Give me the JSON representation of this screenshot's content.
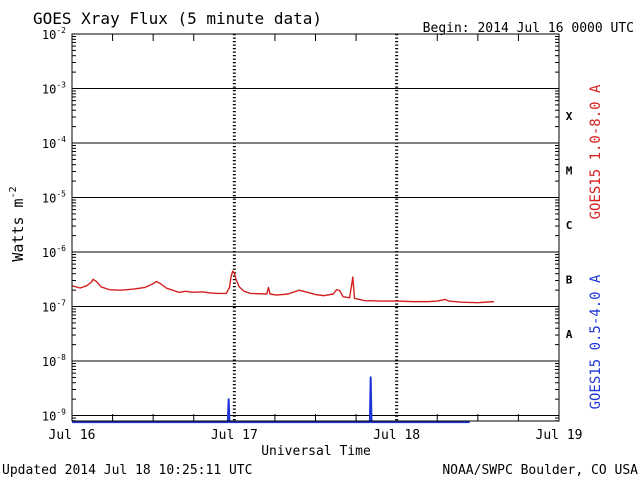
{
  "chart_data": {
    "type": "line",
    "title": "GOES Xray Flux (5 minute data)",
    "begin_label": "Begin:  2014 Jul 16 0000 UTC",
    "xlabel": "Universal Time",
    "ylabel": "Watts m",
    "ylabel_exponent": "-2",
    "updated": "Updated 2014 Jul 18 10:25:11 UTC",
    "source": "NOAA/SWPC Boulder, CO USA",
    "x_unit": "days since 2014 Jul 16 0000 UTC",
    "x_range": [
      0,
      3
    ],
    "x_ticks": [
      {
        "value": 0,
        "label": "Jul 16"
      },
      {
        "value": 1,
        "label": "Jul 17"
      },
      {
        "value": 2,
        "label": "Jul 18"
      },
      {
        "value": 3,
        "label": "Jul 19"
      }
    ],
    "y_scale": "log",
    "y_range_exp": [
      -9.1,
      -2
    ],
    "y_ticks": [
      {
        "exp": -2,
        "base": "10",
        "sup": "-2"
      },
      {
        "exp": -3,
        "base": "10",
        "sup": "-3"
      },
      {
        "exp": -4,
        "base": "10",
        "sup": "-4"
      },
      {
        "exp": -5,
        "base": "10",
        "sup": "-5"
      },
      {
        "exp": -6,
        "base": "10",
        "sup": "-6"
      },
      {
        "exp": -7,
        "base": "10",
        "sup": "-7"
      },
      {
        "exp": -8,
        "base": "10",
        "sup": "-8"
      },
      {
        "exp": -9,
        "base": "10",
        "sup": "-9"
      }
    ],
    "flare_classes": [
      {
        "label": "X",
        "exp": -3.5
      },
      {
        "label": "M",
        "exp": -4.5
      },
      {
        "label": "C",
        "exp": -5.5
      },
      {
        "label": "B",
        "exp": -6.5
      },
      {
        "label": "A",
        "exp": -7.5
      }
    ],
    "grid": true,
    "legend_placement": "right",
    "series": [
      {
        "name": "GOES15 1.0-8.0 A",
        "color": "#d42020",
        "points": [
          [
            0.0,
            -6.62
          ],
          [
            0.05,
            -6.66
          ],
          [
            0.09,
            -6.62
          ],
          [
            0.12,
            -6.55
          ],
          [
            0.13,
            -6.5
          ],
          [
            0.15,
            -6.54
          ],
          [
            0.18,
            -6.64
          ],
          [
            0.23,
            -6.69
          ],
          [
            0.3,
            -6.7
          ],
          [
            0.38,
            -6.68
          ],
          [
            0.45,
            -6.65
          ],
          [
            0.5,
            -6.58
          ],
          [
            0.52,
            -6.54
          ],
          [
            0.54,
            -6.57
          ],
          [
            0.58,
            -6.66
          ],
          [
            0.62,
            -6.7
          ],
          [
            0.66,
            -6.74
          ],
          [
            0.7,
            -6.72
          ],
          [
            0.75,
            -6.74
          ],
          [
            0.8,
            -6.73
          ],
          [
            0.85,
            -6.75
          ],
          [
            0.9,
            -6.76
          ],
          [
            0.95,
            -6.76
          ],
          [
            0.97,
            -6.65
          ],
          [
            0.98,
            -6.45
          ],
          [
            0.99,
            -6.35
          ],
          [
            1.0,
            -6.38
          ],
          [
            1.01,
            -6.5
          ],
          [
            1.03,
            -6.64
          ],
          [
            1.06,
            -6.72
          ],
          [
            1.1,
            -6.76
          ],
          [
            1.2,
            -6.77
          ],
          [
            1.21,
            -6.65
          ],
          [
            1.22,
            -6.77
          ],
          [
            1.26,
            -6.79
          ],
          [
            1.33,
            -6.77
          ],
          [
            1.4,
            -6.7
          ],
          [
            1.45,
            -6.74
          ],
          [
            1.5,
            -6.78
          ],
          [
            1.55,
            -6.8
          ],
          [
            1.61,
            -6.77
          ],
          [
            1.63,
            -6.69
          ],
          [
            1.65,
            -6.71
          ],
          [
            1.67,
            -6.82
          ],
          [
            1.71,
            -6.84
          ],
          [
            1.73,
            -6.46
          ],
          [
            1.74,
            -6.85
          ],
          [
            1.8,
            -6.89
          ],
          [
            1.9,
            -6.9
          ],
          [
            2.0,
            -6.9
          ],
          [
            2.1,
            -6.91
          ],
          [
            2.2,
            -6.91
          ],
          [
            2.25,
            -6.9
          ],
          [
            2.3,
            -6.87
          ],
          [
            2.32,
            -6.9
          ],
          [
            2.4,
            -6.92
          ],
          [
            2.5,
            -6.93
          ],
          [
            2.6,
            -6.91
          ]
        ]
      },
      {
        "name": "GOES15 0.5-4.0 A",
        "color": "#1f35d8",
        "points": [
          [
            0.0,
            -9.12
          ],
          [
            0.93,
            -9.12
          ],
          [
            0.96,
            -9.12
          ],
          [
            0.965,
            -8.7
          ],
          [
            0.97,
            -9.12
          ],
          [
            1.8,
            -9.12
          ],
          [
            1.835,
            -9.12
          ],
          [
            1.84,
            -8.3
          ],
          [
            1.845,
            -9.12
          ],
          [
            2.45,
            -9.12
          ]
        ]
      }
    ]
  }
}
